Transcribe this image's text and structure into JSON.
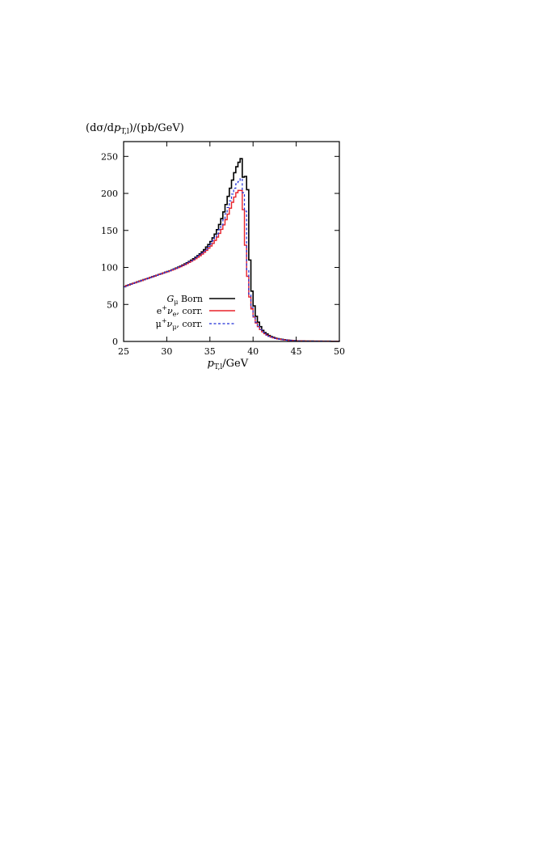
{
  "chart_data": {
    "type": "line",
    "step": true,
    "ylabel_parts": [
      "(dσ/d",
      "p",
      "T,l",
      ")/(pb/GeV)"
    ],
    "xlabel_parts": [
      "p",
      "T,l",
      "/GeV"
    ],
    "xlim": [
      25,
      50
    ],
    "ylim": [
      0,
      270
    ],
    "x_ticks": [
      "25",
      "30",
      "35",
      "40",
      "45",
      "50"
    ],
    "y_ticks": [
      "0",
      "50",
      "100",
      "150",
      "200",
      "250"
    ],
    "x_tick_values": [
      25,
      30,
      35,
      40,
      45,
      50
    ],
    "y_tick_values": [
      0,
      50,
      100,
      150,
      200,
      250
    ],
    "grid": false,
    "legend_position": "bottom-left",
    "x": [
      25.0,
      25.25,
      25.5,
      25.75,
      26.0,
      26.25,
      26.5,
      26.75,
      27.0,
      27.25,
      27.5,
      27.75,
      28.0,
      28.25,
      28.5,
      28.75,
      29.0,
      29.25,
      29.5,
      29.75,
      30.0,
      30.25,
      30.5,
      30.75,
      31.0,
      31.25,
      31.5,
      31.75,
      32.0,
      32.25,
      32.5,
      32.75,
      33.0,
      33.25,
      33.5,
      33.75,
      34.0,
      34.25,
      34.5,
      34.75,
      35.0,
      35.25,
      35.5,
      35.75,
      36.0,
      36.25,
      36.5,
      36.75,
      37.0,
      37.25,
      37.5,
      37.75,
      38.0,
      38.25,
      38.5,
      38.75,
      39.0,
      39.25,
      39.5,
      39.75,
      40.0,
      40.25,
      40.5,
      40.75,
      41.0,
      41.25,
      41.5,
      41.75,
      42.0,
      42.25,
      42.5,
      42.75,
      43.0,
      43.25,
      43.5,
      43.75,
      44.0,
      44.25,
      44.5,
      44.75,
      45.0,
      45.5,
      46.0,
      47.0,
      48.0,
      49.0,
      50.0
    ],
    "series": [
      {
        "name_parts": [
          "G",
          "μ",
          " Born"
        ],
        "color": "#000000",
        "dash": "none",
        "width": 1.6,
        "values": [
          74,
          75.5,
          76.5,
          77.5,
          78.5,
          79.5,
          80.5,
          81.5,
          82.5,
          83.5,
          84.5,
          85.5,
          86.5,
          87.5,
          88.5,
          89.5,
          90.5,
          91.5,
          92.5,
          93.5,
          94.5,
          95.5,
          96.7,
          97.9,
          99.1,
          100.4,
          101.8,
          103.2,
          104.7,
          106.3,
          108,
          109.8,
          111.7,
          113.8,
          116,
          118.4,
          121,
          124,
          127.5,
          131,
          135,
          140,
          145,
          151,
          158,
          166,
          175,
          185,
          196,
          207,
          218,
          228,
          236,
          242,
          247,
          222,
          223,
          205,
          110,
          68,
          48,
          34,
          26,
          20,
          15,
          12,
          10,
          8,
          6.5,
          5.5,
          4.5,
          3.8,
          3.2,
          2.8,
          2.4,
          2.0,
          1.7,
          1.4,
          1.2,
          1.0,
          0.8,
          0.6,
          0.5,
          0.4,
          0.3,
          0.2,
          0.1
        ]
      },
      {
        "name_parts": [
          "e",
          "+",
          "ν",
          "e",
          ", corr."
        ],
        "color": "#e8222a",
        "dash": "none",
        "width": 1.4,
        "values": [
          74,
          75.4,
          76.4,
          77.4,
          78.4,
          79.4,
          80.4,
          81.4,
          82.4,
          83.4,
          84.4,
          85.4,
          86.4,
          87.4,
          88.4,
          89.4,
          90.4,
          91.4,
          92.4,
          93.4,
          94.3,
          95.3,
          96.4,
          97.5,
          98.6,
          99.8,
          101.1,
          102.4,
          103.8,
          105.3,
          106.8,
          108.4,
          110.1,
          111.9,
          113.8,
          115.8,
          118,
          120.5,
          123,
          126,
          129,
          132.5,
          136.5,
          141,
          146,
          151.5,
          157.5,
          164.5,
          172,
          180,
          188,
          195,
          201,
          204,
          204,
          178,
          130,
          88,
          60,
          44,
          33,
          25,
          20,
          16,
          13,
          10.5,
          8.5,
          7,
          5.8,
          4.8,
          4,
          3.4,
          2.9,
          2.5,
          2.1,
          1.8,
          1.5,
          1.3,
          1.1,
          0.9,
          0.7,
          0.6,
          0.5,
          0.4,
          0.3,
          0.2,
          0.1
        ]
      },
      {
        "name_parts": [
          "μ",
          "+",
          "ν",
          "μ",
          ", corr."
        ],
        "color": "#1f2fd6",
        "dash": "3,2.5",
        "width": 1.2,
        "values": [
          74,
          75.4,
          76.4,
          77.4,
          78.4,
          79.4,
          80.4,
          81.4,
          82.4,
          83.4,
          84.4,
          85.4,
          86.4,
          87.4,
          88.4,
          89.4,
          90.4,
          91.4,
          92.4,
          93.4,
          94.4,
          95.4,
          96.5,
          97.7,
          98.9,
          100.1,
          101.4,
          102.8,
          104.3,
          105.8,
          107.4,
          109.1,
          110.9,
          112.8,
          114.9,
          117.1,
          119.5,
          122.2,
          125,
          128.5,
          132,
          136,
          140.5,
          145.5,
          151,
          157.5,
          164.5,
          172.5,
          181,
          190,
          199,
          207,
          213,
          216,
          220,
          201,
          176,
          97,
          64,
          46,
          34,
          26,
          20,
          16,
          13,
          10.5,
          8.5,
          7,
          5.8,
          4.8,
          4,
          3.4,
          2.9,
          2.5,
          2.1,
          1.8,
          1.5,
          1.3,
          1.1,
          0.9,
          0.7,
          0.6,
          0.5,
          0.4,
          0.3,
          0.2,
          0.1
        ]
      }
    ]
  }
}
